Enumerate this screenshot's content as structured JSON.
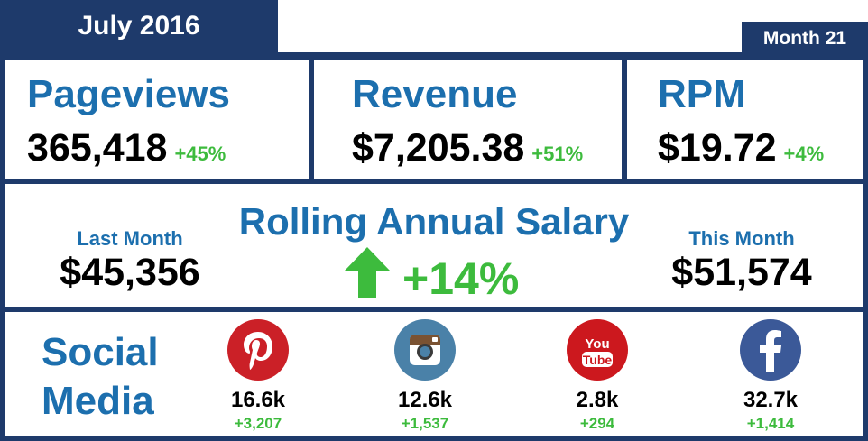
{
  "header": {
    "title": "July 2016",
    "month_badge": "Month 21"
  },
  "metrics": [
    {
      "label": "Pageviews",
      "value": "365,418",
      "change": "+45%"
    },
    {
      "label": "Revenue",
      "value": "$7,205.38",
      "change": "+51%"
    },
    {
      "label": "RPM",
      "value": "$19.72",
      "change": "+4%"
    }
  ],
  "salary": {
    "title": "Rolling Annual Salary",
    "last_month_label": "Last Month",
    "last_month_value": "$45,356",
    "this_month_label": "This Month",
    "this_month_value": "$51,574",
    "change": "+14%",
    "arrow_icon": "up-arrow-icon"
  },
  "social": {
    "label_line1": "Social",
    "label_line2": "Media",
    "networks": [
      {
        "icon": "pinterest-icon",
        "color": "#cb2027",
        "count": "16.6k",
        "change": "+3,207"
      },
      {
        "icon": "instagram-icon",
        "color": "#4a81a8",
        "count": "12.6k",
        "change": "+1,537"
      },
      {
        "icon": "youtube-icon",
        "color": "#cc181e",
        "count": "2.8k",
        "change": "+294"
      },
      {
        "icon": "facebook-icon",
        "color": "#3b5998",
        "count": "32.7k",
        "change": "+1,414"
      }
    ]
  },
  "colors": {
    "navy": "#1e3a6b",
    "blue_text": "#1c6fae",
    "green": "#3dbb3d"
  }
}
